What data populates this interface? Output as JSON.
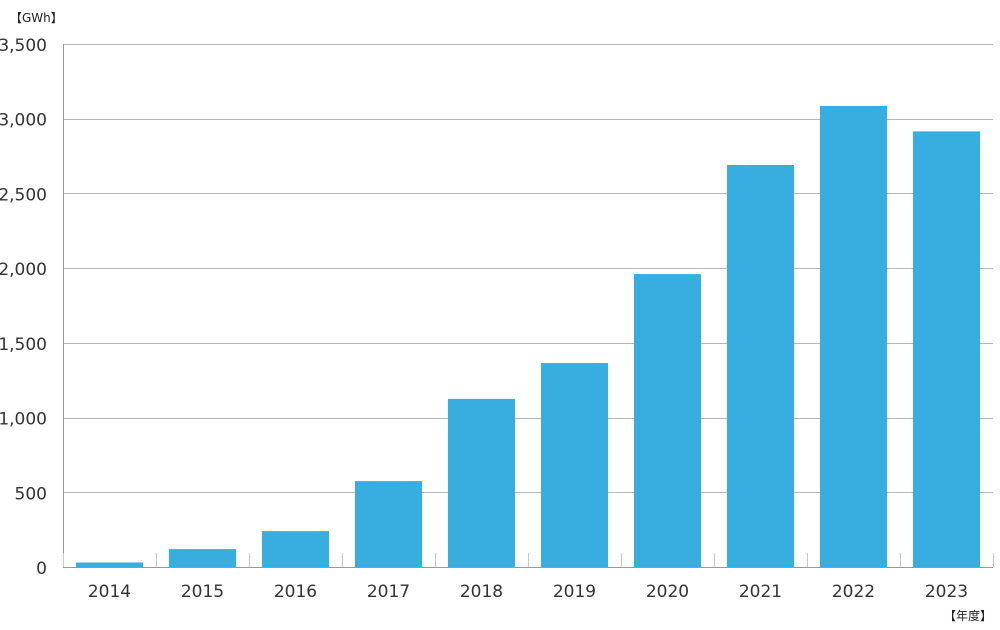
{
  "chart_data": {
    "type": "bar",
    "y_unit_label": "【GWh】",
    "x_unit_label": "【年度】",
    "categories": [
      "2014",
      "2015",
      "2016",
      "2017",
      "2018",
      "2019",
      "2020",
      "2021",
      "2022",
      "2023"
    ],
    "values": [
      30,
      120,
      240,
      575,
      1125,
      1365,
      1960,
      2690,
      3085,
      2915
    ],
    "ylim": [
      0,
      3500
    ],
    "yticks": [
      0,
      500,
      1000,
      1500,
      2000,
      2500,
      3000,
      3500
    ],
    "ytick_labels": [
      "0",
      "500",
      "1,000",
      "1,500",
      "2,000",
      "2,500",
      "3,000",
      "3,500"
    ],
    "grid": true,
    "legend": "none",
    "bar_color": "#38ade0",
    "grid_color": "#b7b7b7",
    "axis_color": "#999999"
  }
}
